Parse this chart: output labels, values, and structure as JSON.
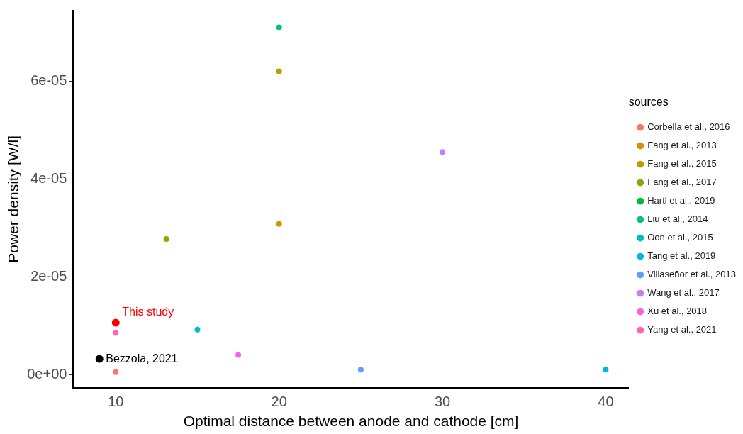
{
  "chart_data": {
    "type": "scatter",
    "xlabel": "Optimal distance between anode and cathode [cm]",
    "ylabel": "Power density [W/l]",
    "legend_title": "sources",
    "legend": "right",
    "marker": "circle",
    "grid": false,
    "xlim": [
      7.4,
      41.4
    ],
    "xticks": [
      10,
      20,
      30,
      40
    ],
    "ylim": [
      -2.7e-06,
      7.44e-05
    ],
    "yticks": [
      {
        "value": 0,
        "label": "0e+00"
      },
      {
        "value": 2e-05,
        "label": "2e-05"
      },
      {
        "value": 4e-05,
        "label": "4e-05"
      },
      {
        "value": 6e-05,
        "label": "6e-05"
      }
    ],
    "series": [
      {
        "name": "Corbella et al., 2016",
        "color": "#f8766d",
        "x": [
          10
        ],
        "values": [
          5e-07
        ]
      },
      {
        "name": "Fang et al., 2013",
        "color": "#de8c00",
        "x": [
          20
        ],
        "values": [
          3.08e-05
        ]
      },
      {
        "name": "Fang et al., 2015",
        "color": "#b79f00",
        "x": [
          20
        ],
        "values": [
          6.2e-05
        ]
      },
      {
        "name": "Fang et al., 2017",
        "color": "#7cae00",
        "x": [
          13.1
        ],
        "values": [
          2.77e-05
        ]
      },
      {
        "name": "Hartl et al., 2019",
        "color": "#00ba38"
      },
      {
        "name": "Liu et al., 2014",
        "color": "#00c08b",
        "x": [
          20
        ],
        "values": [
          7.1e-05
        ]
      },
      {
        "name": "Oon et al., 2015",
        "color": "#00bfc4",
        "x": [
          15
        ],
        "values": [
          9.2e-06
        ]
      },
      {
        "name": "Tang et al., 2019",
        "color": "#00b4f0",
        "x": [
          40
        ],
        "values": [
          1e-06
        ]
      },
      {
        "name": "Villaseñor et al., 2013",
        "color": "#619cff",
        "x": [
          25
        ],
        "values": [
          1e-06
        ]
      },
      {
        "name": "Wang et al., 2017",
        "color": "#c77cff",
        "x": [
          30
        ],
        "values": [
          4.55e-05
        ]
      },
      {
        "name": "Xu et al., 2018",
        "color": "#f564e3",
        "x": [
          17.5
        ],
        "values": [
          4e-06
        ]
      },
      {
        "name": "Yang et al., 2021",
        "color": "#ff64b0",
        "x": [
          10
        ],
        "values": [
          8.5e-06
        ]
      },
      {
        "color": "#ff0000",
        "x": [
          10
        ],
        "values": [
          1.06e-05
        ]
      },
      {
        "color": "#000000",
        "x": [
          9
        ],
        "values": [
          3.2e-06
        ]
      }
    ],
    "annotations": [
      {
        "text": "This study",
        "x": 10,
        "y": 1.06e-05
      },
      {
        "text": "Bezzola, 2021",
        "x": 9,
        "y": 3.2e-06
      }
    ]
  }
}
